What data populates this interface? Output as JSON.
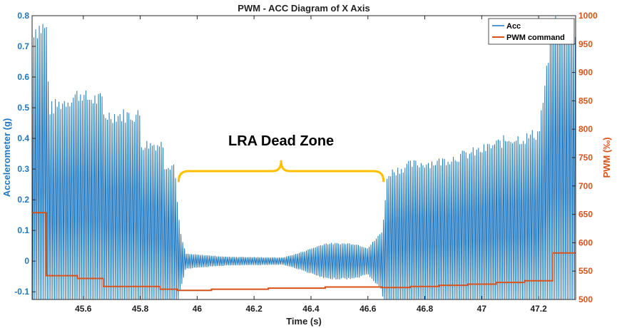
{
  "chart_data": {
    "type": "line",
    "title": "PWM - ACC Diagram of X Axis",
    "xlabel": "Time (s)",
    "ylabel_left": "Accelerometer (g)",
    "ylabel_right": "PWM (‰)",
    "xlim": [
      45.42,
      47.33
    ],
    "ylim_left": [
      -0.125,
      0.8
    ],
    "ylim_right": [
      500,
      1000
    ],
    "xticks": [
      "45.6",
      "45.8",
      "46",
      "46.2",
      "46.4",
      "46.6",
      "46.8",
      "47",
      "47.2"
    ],
    "xtick_values": [
      45.6,
      45.8,
      46.0,
      46.2,
      46.4,
      46.6,
      46.8,
      47.0,
      47.2
    ],
    "yticks_left": [
      "-0.1",
      "0",
      "0.1",
      "0.2",
      "0.3",
      "0.4",
      "0.5",
      "0.6",
      "0.7",
      "0.8"
    ],
    "ytick_values_left": [
      -0.1,
      0,
      0.1,
      0.2,
      0.3,
      0.4,
      0.5,
      0.6,
      0.7,
      0.8
    ],
    "yticks_right": [
      "500",
      "550",
      "600",
      "650",
      "700",
      "750",
      "800",
      "850",
      "900",
      "950",
      "1000"
    ],
    "ytick_values_right": [
      500,
      550,
      600,
      650,
      700,
      750,
      800,
      850,
      900,
      950,
      1000
    ],
    "legend": [
      "Acc",
      "PWM command"
    ],
    "legend_position": "top-right",
    "colors": {
      "acc": "#1f77c0",
      "pwm": "#d95319",
      "bracket": "#ffc000",
      "left_axis": "#1f77c0",
      "right_axis": "#d95319"
    },
    "annotation": {
      "text": "LRA Dead Zone",
      "x_start": 45.935,
      "x_end": 46.655
    },
    "series": [
      {
        "name": "PWM command",
        "axis": "right",
        "x": [
          45.42,
          45.47,
          45.47,
          45.58,
          45.58,
          45.67,
          45.67,
          45.87,
          45.87,
          45.93,
          45.93,
          46.05,
          46.05,
          46.25,
          46.25,
          46.45,
          46.45,
          46.65,
          46.65,
          46.75,
          46.75,
          46.85,
          46.85,
          46.95,
          46.95,
          47.05,
          47.05,
          47.15,
          47.15,
          47.25,
          47.25,
          47.33
        ],
        "y": [
          653,
          653,
          542,
          542,
          537,
          537,
          523,
          523,
          518,
          518,
          516,
          516,
          518,
          518,
          520,
          520,
          522,
          522,
          521,
          521,
          523,
          523,
          525,
          525,
          527,
          527,
          530,
          530,
          533,
          533,
          582,
          582
        ]
      },
      {
        "name": "Acc",
        "axis": "left",
        "envelope_x": [
          45.42,
          45.47,
          45.48,
          45.6,
          45.6,
          45.67,
          45.67,
          45.8,
          45.8,
          45.88,
          45.88,
          45.92,
          45.94,
          45.96,
          46.1,
          46.3,
          46.35,
          46.45,
          46.55,
          46.6,
          46.65,
          46.67,
          46.75,
          46.75,
          46.85,
          46.85,
          47.0,
          47.1,
          47.15,
          47.2,
          47.25,
          47.33
        ],
        "envelope_amp": [
          0.8,
          0.8,
          0.52,
          0.58,
          0.56,
          0.55,
          0.5,
          0.5,
          0.4,
          0.4,
          0.33,
          0.33,
          0.1,
          0.025,
          0.015,
          0.012,
          0.025,
          0.06,
          0.06,
          0.045,
          0.1,
          0.3,
          0.33,
          0.33,
          0.34,
          0.34,
          0.38,
          0.42,
          0.42,
          0.44,
          0.8,
          0.8
        ],
        "offset": 0.0,
        "cycle_period_s": 0.0063
      }
    ]
  }
}
